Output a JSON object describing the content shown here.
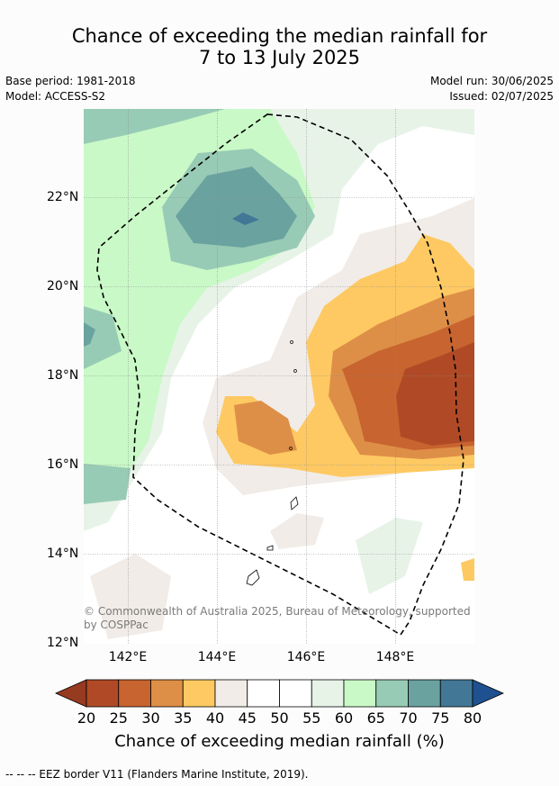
{
  "title_line1": "Chance of exceeding the median rainfall for",
  "title_line2": "7 to 13 July 2025",
  "base_period": "Base period: 1981-2018",
  "model": "Model: ACCESS-S2",
  "model_run": "Model run: 30/06/2025",
  "issued": "Issued: 02/07/2025",
  "copyright": "© Commonwealth of Australia 2025, Bureau of Meteorology, supported by COSPPac",
  "lat_labels": [
    "22°N",
    "20°N",
    "18°N",
    "16°N",
    "14°N",
    "12°N"
  ],
  "lon_labels": [
    "142°E",
    "144°E",
    "146°E",
    "148°E"
  ],
  "colorbar": {
    "ticks": [
      "20",
      "25",
      "30",
      "35",
      "40",
      "45",
      "50",
      "55",
      "60",
      "65",
      "70",
      "75",
      "80"
    ],
    "colors": [
      "#b04a26",
      "#c8642f",
      "#de8f47",
      "#fec962",
      "#f1ece7",
      "#ffffff",
      "#ffffff",
      "#e8f3e8",
      "#c9f9c7",
      "#98cbb5",
      "#6aa2a0",
      "#427896"
    ],
    "under_color": "#963a20",
    "over_color": "#1f5190",
    "label": "Chance of exceeding median rainfall (%)"
  },
  "footnote": "--  --  -- EEZ border V11 (Flanders Marine Institute, 2019)."
}
